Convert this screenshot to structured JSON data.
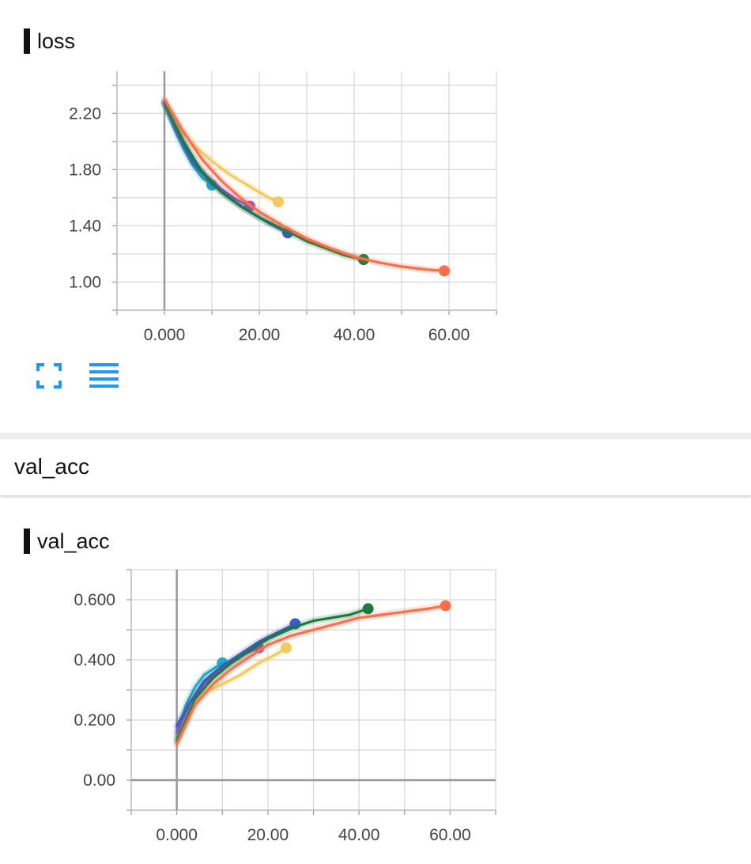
{
  "loss_card": {
    "title": "loss"
  },
  "section": {
    "title": "val_acc"
  },
  "acc_card": {
    "title": "val_acc"
  },
  "toolbar": {
    "expand_icon": "fullscreen-icon",
    "data_icon": "list-icon",
    "icon_color": "#2196f3"
  },
  "chart_data": [
    {
      "type": "line",
      "title": "loss",
      "xlim": [
        -10,
        70
      ],
      "ylim": [
        0.8,
        2.5
      ],
      "xticks": [
        "0.000",
        "20.00",
        "40.00",
        "60.00"
      ],
      "yticks": [
        "1.00",
        "1.40",
        "1.80",
        "2.20"
      ],
      "grid": true,
      "series": [
        {
          "color": "#f4c95d",
          "points": [
            [
              0,
              2.27
            ],
            [
              3,
              2.1
            ],
            [
              6,
              1.98
            ],
            [
              10,
              1.86
            ],
            [
              14,
              1.76
            ],
            [
              18,
              1.68
            ],
            [
              22,
              1.6
            ],
            [
              24,
              1.57
            ]
          ]
        },
        {
          "color": "#1aafc6",
          "points": [
            [
              0,
              2.27
            ],
            [
              2,
              2.1
            ],
            [
              4,
              1.95
            ],
            [
              6,
              1.83
            ],
            [
              8,
              1.74
            ],
            [
              10,
              1.69
            ]
          ]
        },
        {
          "color": "#9c4fc0",
          "points": [
            [
              0,
              2.28
            ],
            [
              3,
              2.05
            ],
            [
              6,
              1.86
            ],
            [
              9,
              1.75
            ],
            [
              12,
              1.66
            ],
            [
              15,
              1.59
            ],
            [
              18,
              1.54
            ]
          ]
        },
        {
          "color": "#3b5bc6",
          "points": [
            [
              0,
              2.28
            ],
            [
              3,
              2.05
            ],
            [
              6,
              1.85
            ],
            [
              10,
              1.7
            ],
            [
              14,
              1.59
            ],
            [
              18,
              1.5
            ],
            [
              22,
              1.42
            ],
            [
              26,
              1.35
            ]
          ]
        },
        {
          "color": "#1c7a3e",
          "points": [
            [
              0,
              2.27
            ],
            [
              4,
              2.0
            ],
            [
              8,
              1.78
            ],
            [
              12,
              1.64
            ],
            [
              16,
              1.54
            ],
            [
              20,
              1.46
            ],
            [
              26,
              1.36
            ],
            [
              30,
              1.29
            ],
            [
              34,
              1.24
            ],
            [
              38,
              1.19
            ],
            [
              42,
              1.16
            ]
          ]
        },
        {
          "color": "#ff6e48",
          "points": [
            [
              0,
              2.3
            ],
            [
              4,
              2.07
            ],
            [
              8,
              1.87
            ],
            [
              12,
              1.72
            ],
            [
              16,
              1.6
            ],
            [
              20,
              1.5
            ],
            [
              25,
              1.4
            ],
            [
              30,
              1.31
            ],
            [
              35,
              1.24
            ],
            [
              40,
              1.18
            ],
            [
              45,
              1.14
            ],
            [
              50,
              1.11
            ],
            [
              55,
              1.09
            ],
            [
              59,
              1.08
            ]
          ]
        }
      ]
    },
    {
      "type": "line",
      "title": "val_acc",
      "xlim": [
        -10,
        70
      ],
      "ylim": [
        -0.1,
        0.7
      ],
      "xticks": [
        "0.000",
        "20.00",
        "40.00",
        "60.00"
      ],
      "yticks": [
        "0.00",
        "0.200",
        "0.400",
        "0.600"
      ],
      "grid": true,
      "series": [
        {
          "color": "#f4c95d",
          "points": [
            [
              0,
              0.15
            ],
            [
              3,
              0.24
            ],
            [
              6,
              0.29
            ],
            [
              10,
              0.32
            ],
            [
              14,
              0.35
            ],
            [
              18,
              0.39
            ],
            [
              22,
              0.42
            ],
            [
              24,
              0.44
            ]
          ]
        },
        {
          "color": "#1aafc6",
          "points": [
            [
              0,
              0.14
            ],
            [
              2,
              0.25
            ],
            [
              4,
              0.31
            ],
            [
              6,
              0.35
            ],
            [
              8,
              0.37
            ],
            [
              10,
              0.39
            ]
          ]
        },
        {
          "color": "#9c4fc0",
          "points": [
            [
              0,
              0.16
            ],
            [
              3,
              0.26
            ],
            [
              6,
              0.32
            ],
            [
              9,
              0.36
            ],
            [
              12,
              0.39
            ],
            [
              15,
              0.42
            ],
            [
              18,
              0.44
            ]
          ]
        },
        {
          "color": "#3b5bc6",
          "points": [
            [
              0,
              0.18
            ],
            [
              3,
              0.26
            ],
            [
              6,
              0.33
            ],
            [
              10,
              0.38
            ],
            [
              14,
              0.42
            ],
            [
              18,
              0.46
            ],
            [
              22,
              0.49
            ],
            [
              26,
              0.52
            ]
          ]
        },
        {
          "color": "#1c7a3e",
          "points": [
            [
              0,
              0.13
            ],
            [
              4,
              0.27
            ],
            [
              8,
              0.34
            ],
            [
              12,
              0.39
            ],
            [
              16,
              0.43
            ],
            [
              20,
              0.47
            ],
            [
              26,
              0.51
            ],
            [
              30,
              0.53
            ],
            [
              34,
              0.54
            ],
            [
              38,
              0.55
            ],
            [
              42,
              0.57
            ]
          ]
        },
        {
          "color": "#ff6e48",
          "points": [
            [
              0,
              0.12
            ],
            [
              4,
              0.25
            ],
            [
              8,
              0.32
            ],
            [
              12,
              0.37
            ],
            [
              16,
              0.41
            ],
            [
              20,
              0.45
            ],
            [
              25,
              0.48
            ],
            [
              30,
              0.5
            ],
            [
              35,
              0.52
            ],
            [
              40,
              0.54
            ],
            [
              45,
              0.55
            ],
            [
              50,
              0.56
            ],
            [
              55,
              0.57
            ],
            [
              59,
              0.58
            ]
          ]
        }
      ]
    }
  ]
}
